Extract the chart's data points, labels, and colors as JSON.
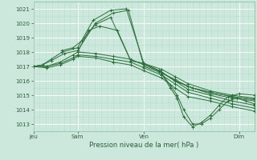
{
  "title": "Pression niveau de la mer( hPa )",
  "bg_color": "#cce8dc",
  "grid_color_major": "#ffffff",
  "grid_color_minor": "#b8ddd0",
  "line_color": "#2d6e3a",
  "ylim": [
    1012.5,
    1021.5
  ],
  "yticks": [
    1013,
    1014,
    1015,
    1016,
    1017,
    1018,
    1019,
    1020,
    1021
  ],
  "xlim": [
    0,
    1
  ],
  "xtick_labels": [
    "Jeu",
    "Sam",
    "Ven",
    "Dim"
  ],
  "xtick_positions": [
    0.0,
    0.2,
    0.5,
    0.93
  ],
  "lines": [
    {
      "x": [
        0.0,
        0.04,
        0.08,
        0.13,
        0.2,
        0.27,
        0.35,
        0.42,
        0.5,
        0.58,
        0.64,
        0.7,
        0.8,
        0.9,
        1.0
      ],
      "y": [
        1017.0,
        1017.1,
        1017.5,
        1018.0,
        1018.3,
        1020.2,
        1020.9,
        1021.0,
        1017.2,
        1016.8,
        1016.3,
        1015.8,
        1015.3,
        1015.0,
        1014.8
      ]
    },
    {
      "x": [
        0.0,
        0.04,
        0.08,
        0.14,
        0.2,
        0.28,
        0.36,
        0.43,
        0.5,
        0.57,
        0.64,
        0.7,
        0.8,
        0.9,
        1.0
      ],
      "y": [
        1017.0,
        1017.1,
        1017.4,
        1017.9,
        1018.1,
        1020.0,
        1020.7,
        1020.9,
        1017.0,
        1016.6,
        1016.1,
        1015.6,
        1015.1,
        1014.8,
        1014.6
      ]
    },
    {
      "x": [
        0.0,
        0.06,
        0.12,
        0.18,
        0.2,
        0.28,
        0.36,
        0.44,
        0.5,
        0.58,
        0.64,
        0.7,
        0.8,
        0.9,
        1.0
      ],
      "y": [
        1017.0,
        1017.0,
        1017.3,
        1017.8,
        1018.0,
        1017.9,
        1017.7,
        1017.5,
        1017.1,
        1016.6,
        1016.0,
        1015.4,
        1015.0,
        1014.6,
        1014.3
      ]
    },
    {
      "x": [
        0.0,
        0.06,
        0.12,
        0.18,
        0.2,
        0.28,
        0.36,
        0.44,
        0.5,
        0.58,
        0.64,
        0.7,
        0.8,
        0.9,
        1.0
      ],
      "y": [
        1017.0,
        1017.0,
        1017.2,
        1017.6,
        1017.8,
        1017.7,
        1017.5,
        1017.3,
        1016.9,
        1016.4,
        1015.8,
        1015.2,
        1014.8,
        1014.4,
        1014.1
      ]
    },
    {
      "x": [
        0.0,
        0.06,
        0.12,
        0.18,
        0.2,
        0.28,
        0.36,
        0.44,
        0.5,
        0.58,
        0.64,
        0.7,
        0.8,
        0.9,
        1.0
      ],
      "y": [
        1017.0,
        1016.9,
        1017.1,
        1017.5,
        1017.7,
        1017.6,
        1017.3,
        1017.1,
        1016.7,
        1016.2,
        1015.5,
        1014.9,
        1014.6,
        1014.2,
        1013.9
      ]
    },
    {
      "x": [
        0.2,
        0.25,
        0.3,
        0.38,
        0.44,
        0.5,
        0.57,
        0.64,
        0.72,
        0.8,
        0.9,
        1.0
      ],
      "y": [
        1018.0,
        1019.5,
        1019.8,
        1019.5,
        1017.4,
        1017.2,
        1016.7,
        1016.0,
        1015.5,
        1015.2,
        1014.9,
        1014.7
      ]
    },
    {
      "x": [
        0.13,
        0.18,
        0.22,
        0.28,
        0.35,
        0.44,
        0.5,
        0.57,
        0.64,
        0.72,
        0.8,
        0.9,
        1.0
      ],
      "y": [
        1018.1,
        1018.3,
        1018.8,
        1019.9,
        1020.4,
        1017.4,
        1017.2,
        1016.7,
        1016.0,
        1015.5,
        1015.2,
        1014.9,
        1014.7
      ]
    },
    {
      "x": [
        0.58,
        0.62,
        0.65,
        0.68,
        0.72,
        0.76,
        0.8,
        0.84,
        0.88,
        0.92,
        0.96,
        1.0
      ],
      "y": [
        1016.5,
        1015.7,
        1015.0,
        1014.0,
        1013.0,
        1013.0,
        1013.4,
        1014.0,
        1014.6,
        1014.8,
        1014.6,
        1014.4
      ]
    },
    {
      "x": [
        0.58,
        0.62,
        0.65,
        0.68,
        0.72,
        0.76,
        0.8,
        0.84,
        0.88,
        0.93,
        1.0
      ],
      "y": [
        1016.5,
        1015.5,
        1014.8,
        1013.5,
        1012.8,
        1013.1,
        1013.6,
        1014.3,
        1014.9,
        1015.1,
        1015.0
      ]
    }
  ]
}
